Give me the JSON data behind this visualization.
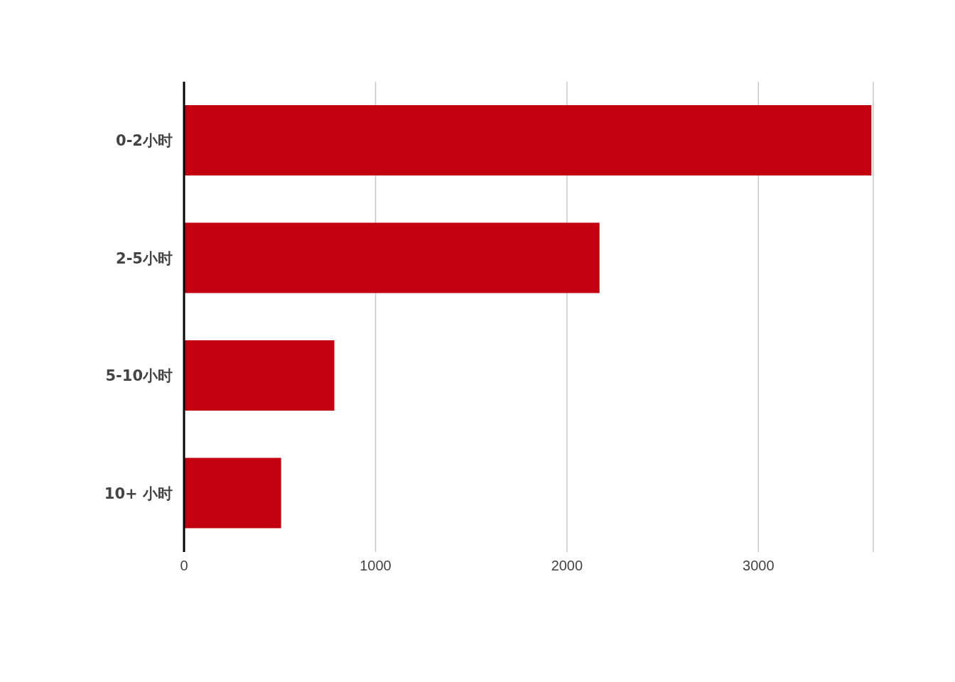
{
  "chart_data": {
    "type": "bar",
    "orientation": "horizontal",
    "categories": [
      "0-2小时",
      "2-5小时",
      "5-10小时",
      "10+ 小时"
    ],
    "values": [
      3590,
      2170,
      785,
      507
    ],
    "color": "#c3000f",
    "xlim": [
      0,
      3600
    ],
    "xticks": [
      0,
      1000,
      2000,
      3000
    ],
    "grid": "x"
  }
}
